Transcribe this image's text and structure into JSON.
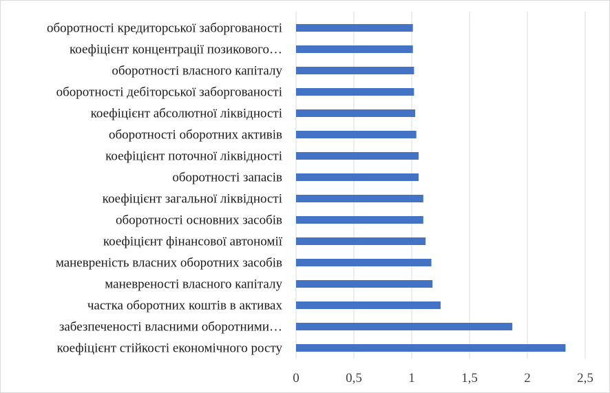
{
  "chart_data": {
    "type": "bar",
    "orientation": "horizontal",
    "title": "",
    "xlabel": "",
    "ylabel": "",
    "xlim": [
      0,
      2.5
    ],
    "x_ticks": [
      0,
      0.5,
      1,
      1.5,
      2,
      2.5
    ],
    "x_tick_labels": [
      "0",
      "0,5",
      "1",
      "1,5",
      "2",
      "2,5"
    ],
    "grid": "vertical",
    "legend": "none",
    "bar_color": "#4472C4",
    "categories": [
      "оборотності кредиторської заборгованості",
      "коефіцієнт концентрації позикового…",
      "оборотності власного капіталу",
      "оборотності дебіторської заборгованості",
      "коефіцієнт абсолютної ліквідності",
      "оборотності оборотних активів",
      "коефіцієнт поточної ліквідності",
      "оборотності запасів",
      "коефіцієнт загальної ліквідності",
      "оборотності основних засобів",
      "коефіцієнт фінансової автономії",
      "маневреність власних оборотних засобів",
      "маневреності власного капіталу",
      "частка оборотних коштів в активах",
      "забезпеченості власними оборотними…",
      "коефіцієнт стійкості економічного росту"
    ],
    "values": [
      1.01,
      1.01,
      1.02,
      1.02,
      1.03,
      1.04,
      1.06,
      1.06,
      1.1,
      1.1,
      1.12,
      1.17,
      1.18,
      1.25,
      1.87,
      2.33
    ]
  }
}
